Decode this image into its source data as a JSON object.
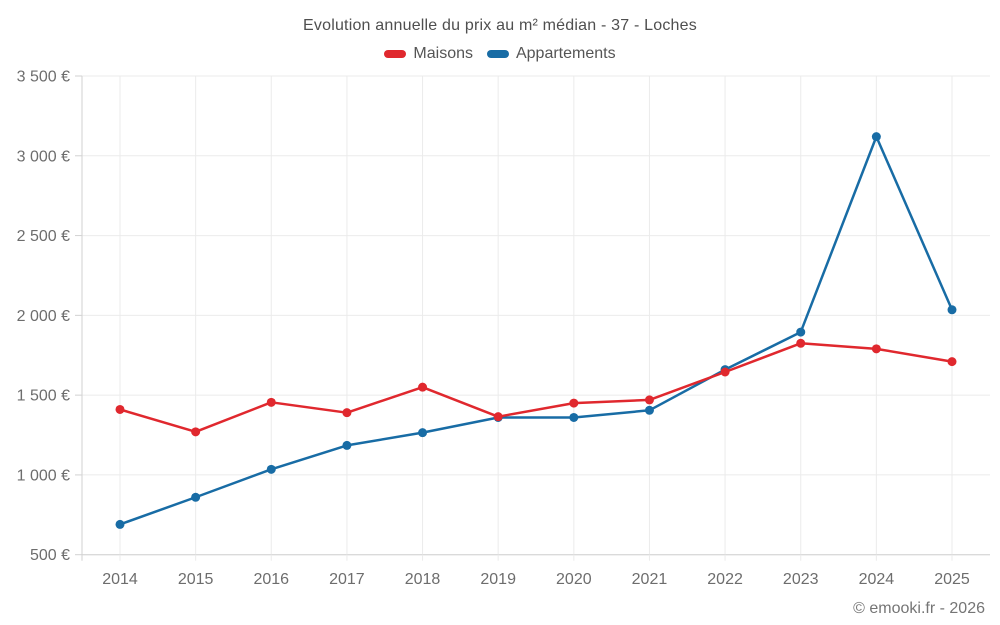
{
  "chart_data": {
    "type": "line",
    "title": "Evolution annuelle du prix au m² médian - 37 - Loches",
    "categories": [
      "2014",
      "2015",
      "2016",
      "2017",
      "2018",
      "2019",
      "2020",
      "2021",
      "2022",
      "2023",
      "2024",
      "2025"
    ],
    "series": [
      {
        "name": "Maisons",
        "color": "#e0282e",
        "values": [
          1410,
          1270,
          1455,
          1390,
          1550,
          1365,
          1450,
          1470,
          1645,
          1825,
          1790,
          1710
        ]
      },
      {
        "name": "Appartements",
        "color": "#186ca5",
        "values": [
          690,
          860,
          1035,
          1185,
          1265,
          1360,
          1360,
          1405,
          1660,
          1895,
          3120,
          2035
        ]
      }
    ],
    "ylabel": "",
    "xlabel": "",
    "ylim": [
      500,
      3500
    ],
    "ytick_step": 500,
    "ytick_labels": [
      "500 €",
      "1 000 €",
      "1 500 €",
      "2 000 €",
      "2 500 €",
      "3 000 €",
      "3 500 €"
    ],
    "grid": "on",
    "legend_position": "top-center"
  },
  "footer": {
    "text": "© emooki.fr - 2026"
  },
  "colors": {
    "background": "#ffffff",
    "grid": "#ebebeb",
    "axis": "#d2d2d2",
    "tick_label": "#6d6d6d",
    "title": "#4f4f4f",
    "legend_label": "#555555",
    "footer": "#757575"
  }
}
